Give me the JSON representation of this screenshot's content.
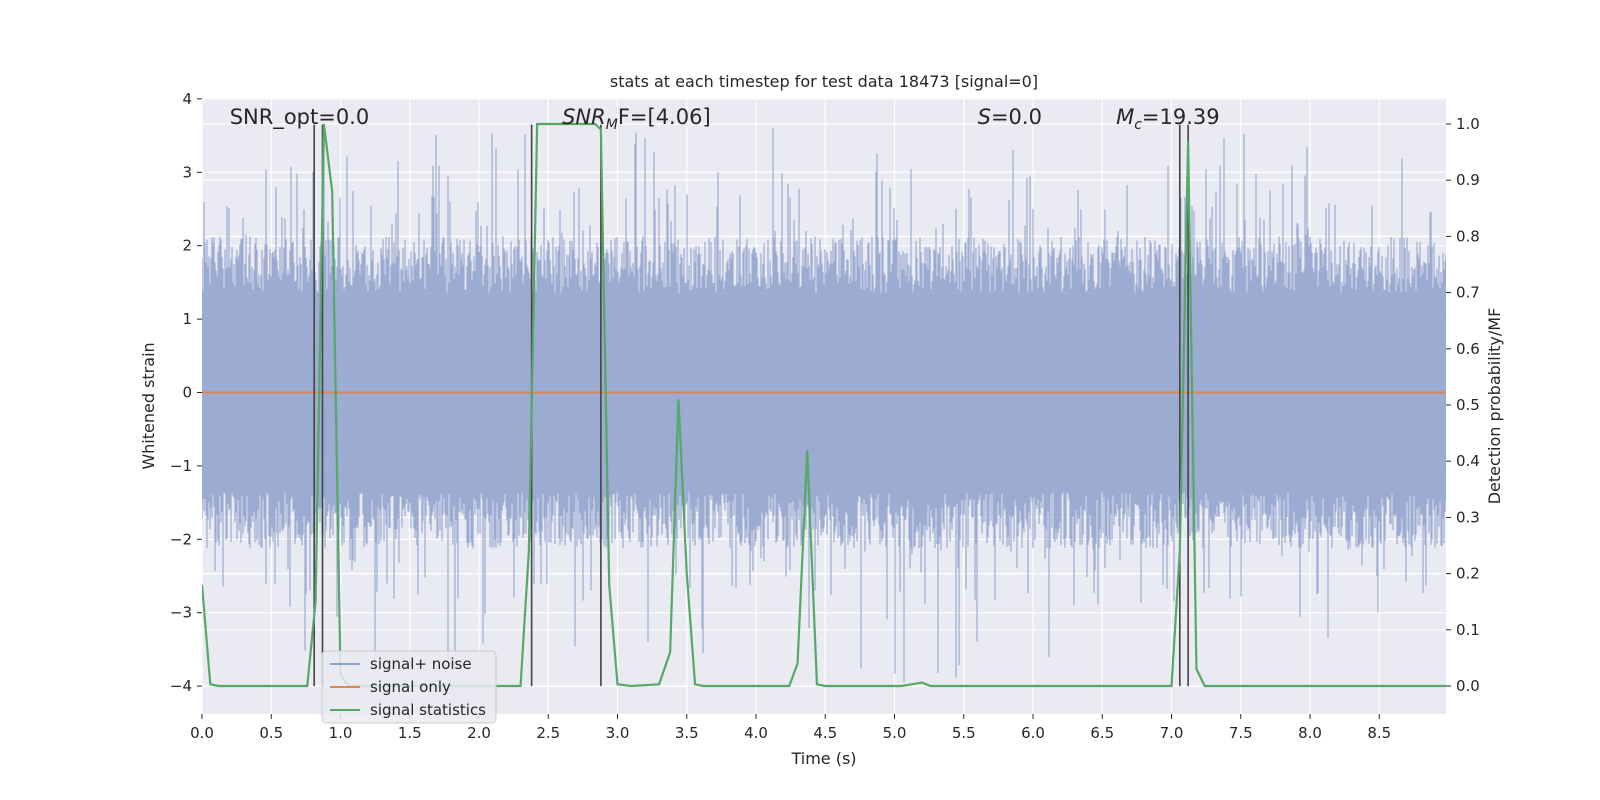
{
  "chart_data": {
    "type": "line",
    "title": "stats at each timestep for test data 18473 [signal=0]",
    "xlabel": "Time (s)",
    "ylabel": "Whitened strain",
    "y2label": "Detection probability/MF",
    "xlim": [
      0.0,
      9.0
    ],
    "ylim": [
      -4.35,
      4.0
    ],
    "y2lim": [
      -0.05,
      1.045
    ],
    "xticks": [
      0.0,
      0.5,
      1.0,
      1.5,
      2.0,
      2.5,
      3.0,
      3.5,
      4.0,
      4.5,
      5.0,
      5.5,
      6.0,
      6.5,
      7.0,
      7.5,
      8.0,
      8.5
    ],
    "xtick_labels": [
      "0.0",
      "0.5",
      "1.0",
      "1.5",
      "2.0",
      "2.5",
      "3.0",
      "3.5",
      "4.0",
      "4.5",
      "5.0",
      "5.5",
      "6.0",
      "6.5",
      "7.0",
      "7.5",
      "8.0",
      "8.5"
    ],
    "yticks": [
      4,
      3,
      2,
      1,
      0,
      -1,
      -2,
      -3,
      -4
    ],
    "ytick_labels": [
      "4",
      "3",
      "2",
      "1",
      "0",
      "−1",
      "−2",
      "−3",
      "−4"
    ],
    "y2ticks": [
      1.0,
      0.9,
      0.8,
      0.7,
      0.6,
      0.5,
      0.4,
      0.3,
      0.2,
      0.1,
      0.0
    ],
    "y2tick_labels": [
      "1.0",
      "0.9",
      "0.8",
      "0.7",
      "0.6",
      "0.5",
      "0.4",
      "0.3",
      "0.2",
      "0.1",
      "0.0"
    ],
    "grid": true,
    "legend_position": "lower-left",
    "series": [
      {
        "name": "signal+ noise",
        "color": "#8da0cb",
        "noise_envelope": {
          "typical_amplitude": 1.7,
          "max_peak": 3.6,
          "min_trough": -4.0
        }
      },
      {
        "name": "signal only",
        "color": "#dd8452",
        "x": [
          0.0,
          9.0
        ],
        "y": [
          0.0,
          0.0
        ]
      },
      {
        "name": "signal statistics",
        "color": "#55a868",
        "axis": "right",
        "x": [
          0.0,
          0.06,
          0.12,
          0.76,
          0.82,
          0.88,
          0.94,
          1.0,
          1.06,
          2.3,
          2.36,
          2.42,
          2.48,
          2.84,
          2.88,
          2.94,
          3.0,
          3.1,
          3.3,
          3.38,
          3.44,
          3.5,
          3.56,
          3.62,
          4.24,
          4.3,
          4.37,
          4.44,
          4.5,
          5.05,
          5.2,
          5.26,
          7.0,
          7.06,
          7.12,
          7.18,
          7.24,
          8.99
        ],
        "y": [
          0.18,
          0.003,
          0.0,
          0.0,
          0.15,
          1.0,
          0.88,
          0.02,
          0.0,
          0.0,
          0.24,
          1.0,
          1.0,
          1.0,
          0.99,
          0.18,
          0.003,
          0.0,
          0.003,
          0.06,
          0.51,
          0.2,
          0.003,
          0.0,
          0.0,
          0.04,
          0.42,
          0.003,
          0.0,
          0.0,
          0.006,
          0.0,
          0.0,
          0.24,
          0.97,
          0.03,
          0.0,
          0.0
        ]
      }
    ],
    "vertical_lines": [
      0.81,
      0.87,
      2.38,
      2.88,
      7.06,
      7.12
    ],
    "vertical_line_range": [
      -4.0,
      3.65
    ],
    "annotations": [
      {
        "text": "SNR_opt=0.0",
        "x": 0.2
      },
      {
        "main": "SNR",
        "sub": "M",
        "tail": "F=[4.06]",
        "x": 2.6
      },
      {
        "main": "S",
        "sub": "",
        "tail": "=0.0",
        "x": 5.6
      },
      {
        "main": "M",
        "sub": "c",
        "tail": "=19.39",
        "x": 6.6
      }
    ]
  }
}
